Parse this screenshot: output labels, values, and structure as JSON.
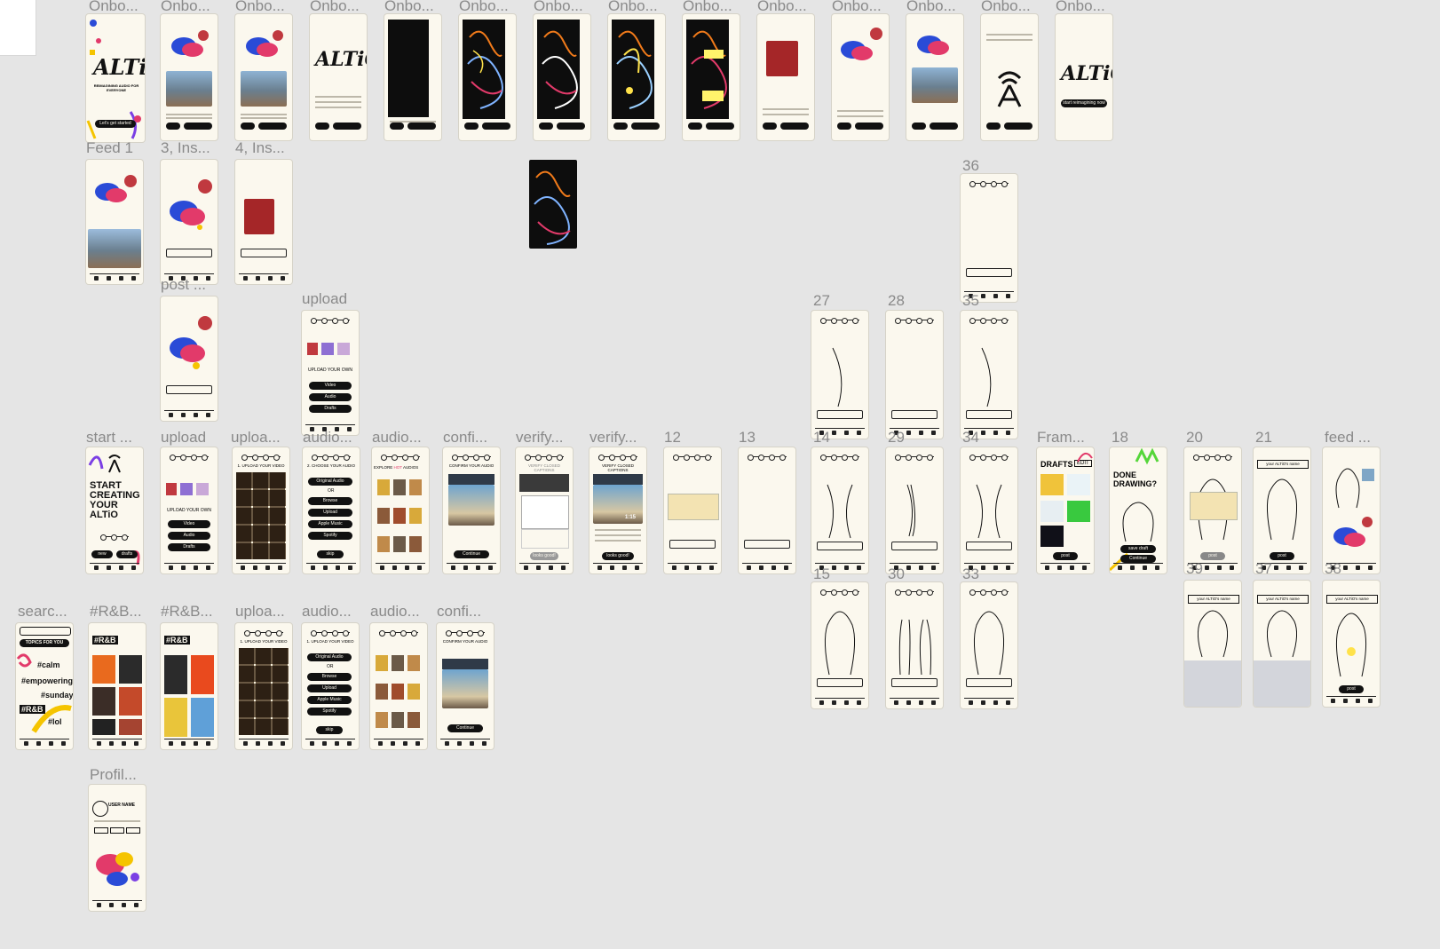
{
  "canvas": {
    "background": "#e5e5e5"
  },
  "labels": {
    "onboarding": "Onbo...",
    "feed1": "Feed 1",
    "ins3": "3, Ins...",
    "ins4": "4, Ins...",
    "post": "post ...",
    "upload": "upload",
    "f36": "36",
    "f27": "27",
    "f28": "28",
    "f35": "35",
    "start": "start ...",
    "uploa": "uploa...",
    "audio": "audio...",
    "confi": "confi...",
    "verify": "verify...",
    "f12": "12",
    "f13": "13",
    "f14": "14",
    "f29": "29",
    "f34": "34",
    "fram": "Fram...",
    "f18": "18",
    "f20": "20",
    "f21": "21",
    "feed": "feed ...",
    "f15": "15",
    "f30": "30",
    "f33": "33",
    "f39": "39",
    "f37": "37",
    "f38": "38",
    "searc": "searc...",
    "rnb": "#R&B...",
    "profil": "Profil..."
  },
  "screens": {
    "altio_logo": "ALTiO",
    "reimagining": "REIMAGINING AUDIO FOR EVERYONE",
    "lets_get_started": "Let's get started",
    "start_creating": "START CREATING YOUR ALTiO",
    "upload_your_own": "UPLOAD YOUR OWN",
    "video": "Video",
    "audio": "Audio",
    "drafts": "Drafts",
    "upload_your_video": "1. UPLOAD YOUR VIDEO",
    "choose_your_audio": "2. CHOOSE YOUR AUDIO",
    "original_audio": "Original Audio",
    "or": "OR",
    "browse": "Browse",
    "upload_btn": "Upload",
    "apple_music": "Apple Music",
    "spotify": "Spotify",
    "skip": "skip",
    "explore": "EXPLORE",
    "hot": "HOT",
    "audios": "AUDIOS",
    "confirm_your_audio": "CONFIRM YOUR AUDIO",
    "continue": "Continue",
    "verify_closed_captions": "VERIFY CLOSED CAPTIONS",
    "looks_good": "looks good!",
    "drafts_title": "DRAFTS",
    "edit": "EDIT",
    "done_drawing": "DONE DRAWING?",
    "save_draft": "save draft",
    "post": "post",
    "topics_for_you": "TOPICS FOR YOU",
    "calm": "#calm",
    "empowering": "#empowering",
    "sunday": "#sunday",
    "rnb": "#R&B",
    "lol": "#lol",
    "your_altio_name": "your ALTiO's name",
    "start_reimagining": "start reimagining now",
    "user_name": "USER NAME",
    "new": "new",
    "drafts_btn": "drafts",
    "timecode": "1:15"
  }
}
